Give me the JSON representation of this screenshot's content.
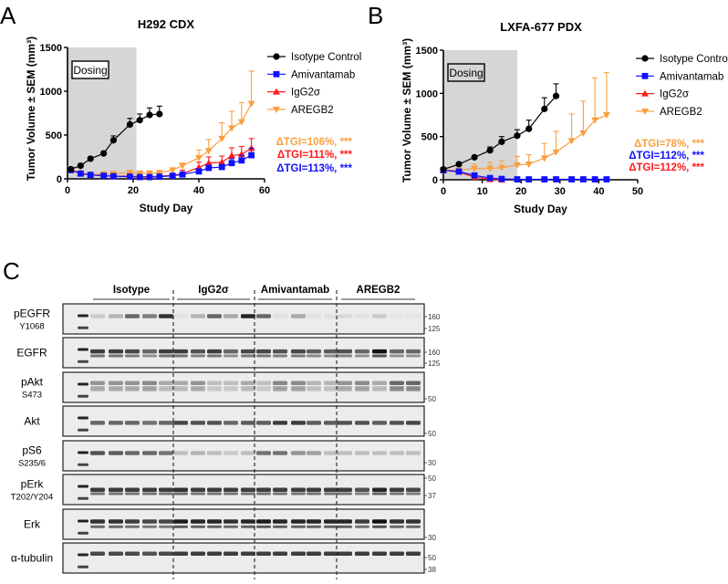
{
  "panel_labels": {
    "a": "A",
    "b": "B",
    "c": "C"
  },
  "colors": {
    "isotype": "#000000",
    "amivantamab": "#1010ff",
    "igg2": "#ff1a1a",
    "aregb2": "#f9a03f",
    "dosing": "#d6d6d6"
  },
  "chart_data": [
    {
      "type": "line",
      "title": "H292 CDX",
      "xlabel": "Study Day",
      "ylabel": "Tumor Volume ± SEM (mm³)",
      "xlim": [
        0,
        60
      ],
      "ylim": [
        0,
        1500
      ],
      "xticks": [
        "0",
        "20",
        "40",
        "60"
      ],
      "yticks": [
        "0",
        "500",
        "1000",
        "1500"
      ],
      "shaded_region": {
        "label": "Dosing",
        "x": [
          0,
          21
        ]
      },
      "legend_position": "top-right",
      "series": [
        {
          "name": "Isotype Control",
          "key": "isotype",
          "marker": "circle",
          "x": [
            1,
            4,
            7,
            11,
            14,
            19,
            22,
            25,
            28
          ],
          "y": [
            110,
            150,
            230,
            290,
            440,
            620,
            670,
            730,
            740
          ],
          "err": [
            20,
            20,
            20,
            25,
            50,
            70,
            70,
            80,
            90
          ]
        },
        {
          "name": "Amivantamab",
          "key": "amivantamab",
          "marker": "square",
          "x": [
            1,
            4,
            7,
            11,
            14,
            19,
            22,
            25,
            28,
            32,
            35,
            40,
            43,
            47,
            50,
            53,
            56
          ],
          "y": [
            100,
            60,
            45,
            35,
            30,
            25,
            20,
            20,
            25,
            35,
            50,
            85,
            125,
            135,
            180,
            210,
            270
          ],
          "err": [
            15,
            10,
            8,
            6,
            5,
            5,
            5,
            5,
            5,
            8,
            10,
            20,
            30,
            30,
            50,
            60,
            80
          ]
        },
        {
          "name": "IgG2σ",
          "key": "igg2",
          "marker": "triangle-up",
          "x": [
            1,
            4,
            7,
            11,
            14,
            19,
            22,
            25,
            28,
            32,
            35,
            40,
            43,
            47,
            50,
            53,
            56
          ],
          "y": [
            105,
            65,
            45,
            35,
            30,
            30,
            25,
            25,
            30,
            40,
            60,
            130,
            180,
            190,
            265,
            280,
            350
          ],
          "err": [
            15,
            10,
            8,
            6,
            5,
            5,
            5,
            5,
            5,
            10,
            40,
            60,
            70,
            70,
            90,
            90,
            110
          ]
        },
        {
          "name": "AREGB2",
          "key": "aregb2",
          "marker": "triangle-down",
          "x": [
            1,
            4,
            7,
            11,
            14,
            19,
            22,
            25,
            28,
            32,
            35,
            40,
            43,
            47,
            50,
            53,
            56
          ],
          "y": [
            110,
            60,
            50,
            55,
            60,
            70,
            65,
            65,
            70,
            100,
            150,
            240,
            320,
            460,
            580,
            650,
            860
          ],
          "err": [
            15,
            10,
            10,
            10,
            10,
            15,
            15,
            15,
            15,
            20,
            30,
            90,
            130,
            180,
            190,
            220,
            370
          ]
        }
      ],
      "annotations": [
        {
          "text": "ΔTGI=106%, ***",
          "key": "aregb2"
        },
        {
          "text": "ΔTGI=111%, ***",
          "key": "igg2"
        },
        {
          "text": "ΔTGI=113%, ***",
          "key": "amivantamab"
        }
      ]
    },
    {
      "type": "line",
      "title": "LXFA-677 PDX",
      "xlabel": "Study Day",
      "ylabel": "Tumor Volume ± SEM (mm³)",
      "xlim": [
        0,
        50
      ],
      "ylim": [
        0,
        1500
      ],
      "xticks": [
        "0",
        "10",
        "20",
        "30",
        "40",
        "50"
      ],
      "yticks": [
        "0",
        "500",
        "1000",
        "1500"
      ],
      "shaded_region": {
        "label": "Dosing",
        "x": [
          0,
          19
        ]
      },
      "legend_position": "top-right",
      "series": [
        {
          "name": "Isotype Control",
          "key": "isotype",
          "marker": "circle",
          "x": [
            0,
            4,
            8,
            12,
            15,
            19,
            22,
            26,
            29
          ],
          "y": [
            120,
            180,
            260,
            340,
            440,
            510,
            590,
            820,
            970
          ],
          "err": [
            15,
            15,
            20,
            40,
            60,
            70,
            100,
            130,
            140
          ]
        },
        {
          "name": "Amivantamab",
          "key": "amivantamab",
          "marker": "square",
          "x": [
            0,
            4,
            8,
            12,
            15,
            19,
            22,
            26,
            29,
            33,
            36,
            39,
            42
          ],
          "y": [
            110,
            95,
            50,
            20,
            10,
            5,
            5,
            5,
            5,
            5,
            5,
            5,
            5
          ],
          "err": [
            10,
            10,
            10,
            5,
            3,
            2,
            2,
            2,
            2,
            2,
            2,
            2,
            2
          ]
        },
        {
          "name": "IgG2σ",
          "key": "igg2",
          "marker": "triangle-up",
          "x": [
            0,
            4,
            8,
            12,
            15
          ],
          "y": [
            110,
            90,
            30,
            5,
            0
          ],
          "err": [
            10,
            10,
            5,
            2,
            1
          ]
        },
        {
          "name": "AREGB2",
          "key": "aregb2",
          "marker": "triangle-down",
          "x": [
            0,
            4,
            8,
            12,
            15,
            19,
            22,
            26,
            29,
            33,
            36,
            39,
            42
          ],
          "y": [
            110,
            110,
            130,
            130,
            140,
            170,
            180,
            250,
            320,
            450,
            540,
            690,
            750
          ],
          "err": [
            10,
            20,
            50,
            70,
            80,
            100,
            110,
            170,
            240,
            310,
            370,
            490,
            490
          ]
        }
      ],
      "annotations": [
        {
          "text": "ΔTGI=78%, ***",
          "key": "aregb2"
        },
        {
          "text": "ΔTGI=112%, ***",
          "key": "amivantamab"
        },
        {
          "text": "ΔTGI=112%, ***",
          "key": "igg2"
        }
      ]
    }
  ],
  "blot": {
    "groups": [
      "Isotype",
      "IgG2σ",
      "Amivantamab",
      "AREGB2"
    ],
    "rows": [
      {
        "label": "pEGFR",
        "sub": "Y1068",
        "mw": [
          "160",
          "125"
        ]
      },
      {
        "label": "EGFR",
        "sub": "",
        "mw": [
          "160",
          "125"
        ]
      },
      {
        "label": "pAkt",
        "sub": "S473",
        "mw": [
          "50"
        ]
      },
      {
        "label": "Akt",
        "sub": "",
        "mw": [
          "50"
        ]
      },
      {
        "label": "pS6",
        "sub": "S235/6",
        "mw": [
          "30"
        ]
      },
      {
        "label": "pErk",
        "sub": "T202/Y204",
        "mw": [
          "50",
          "37"
        ]
      },
      {
        "label": "Erk",
        "sub": "",
        "mw": [
          "30"
        ]
      },
      {
        "label": "α-tubulin",
        "sub": "",
        "mw": [
          "50",
          "38"
        ]
      }
    ]
  }
}
